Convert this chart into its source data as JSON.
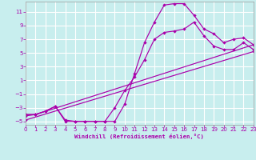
{
  "bg_color": "#c8eeee",
  "grid_color": "#ffffff",
  "line_color": "#aa00aa",
  "xlim": [
    0,
    23
  ],
  "ylim": [
    -5.5,
    12.5
  ],
  "xticks": [
    0,
    1,
    2,
    3,
    4,
    5,
    6,
    7,
    8,
    9,
    10,
    11,
    12,
    13,
    14,
    15,
    16,
    17,
    18,
    19,
    20,
    21,
    22,
    23
  ],
  "yticks": [
    -5,
    -3,
    -1,
    1,
    3,
    5,
    7,
    9,
    11
  ],
  "xlabel": "Windchill (Refroidissement éolien,°C)",
  "line1_x": [
    0,
    1,
    2,
    3,
    4,
    5,
    6,
    7,
    8,
    9,
    10,
    11,
    12,
    13,
    14,
    15,
    16,
    17,
    18,
    19,
    20,
    21,
    22,
    23
  ],
  "line1_y": [
    -4.0,
    -4.0,
    -3.5,
    -2.8,
    -5.0,
    -5.0,
    -5.0,
    -5.0,
    -5.0,
    -5.0,
    -2.5,
    2.0,
    6.5,
    9.5,
    12.0,
    12.2,
    12.2,
    10.5,
    8.5,
    7.8,
    6.5,
    7.0,
    7.2,
    6.2
  ],
  "line2_x": [
    0,
    1,
    2,
    3,
    4,
    5,
    6,
    7,
    8,
    9,
    10,
    11,
    12,
    13,
    14,
    15,
    16,
    17,
    18,
    19,
    20,
    21,
    22,
    23
  ],
  "line2_y": [
    -4.0,
    -4.0,
    -3.5,
    -2.8,
    -4.8,
    -5.0,
    -5.0,
    -5.0,
    -5.0,
    -3.0,
    -0.5,
    1.5,
    4.0,
    7.0,
    8.0,
    8.2,
    8.5,
    9.5,
    7.5,
    6.0,
    5.5,
    5.5,
    6.5,
    5.5
  ],
  "line3_x": [
    0,
    1,
    23
  ],
  "line3_y": [
    -4.2,
    -4.0,
    6.2
  ],
  "line4_x": [
    0,
    23
  ],
  "line4_y": [
    -4.8,
    5.2
  ]
}
